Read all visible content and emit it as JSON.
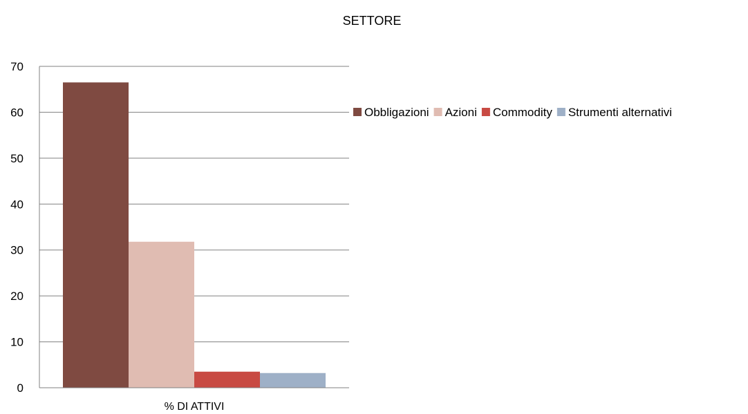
{
  "chart_data": {
    "type": "bar",
    "title": "SETTORE",
    "xlabel": "",
    "ylabel": "",
    "categories": [
      "% DI ATTIVI"
    ],
    "series": [
      {
        "name": "Obbligazioni",
        "values": [
          66.5
        ],
        "color": "#7f4a41"
      },
      {
        "name": "Azioni",
        "values": [
          31.8
        ],
        "color": "#e0bcb2"
      },
      {
        "name": "Commodity",
        "values": [
          3.5
        ],
        "color": "#c84a43"
      },
      {
        "name": "Strumenti alternativi",
        "values": [
          3.2
        ],
        "color": "#9eb0c7"
      }
    ],
    "ylim": [
      0,
      70
    ],
    "yticks": [
      0,
      10,
      20,
      30,
      40,
      50,
      60,
      70
    ],
    "grid": true,
    "legend_position": "right"
  }
}
